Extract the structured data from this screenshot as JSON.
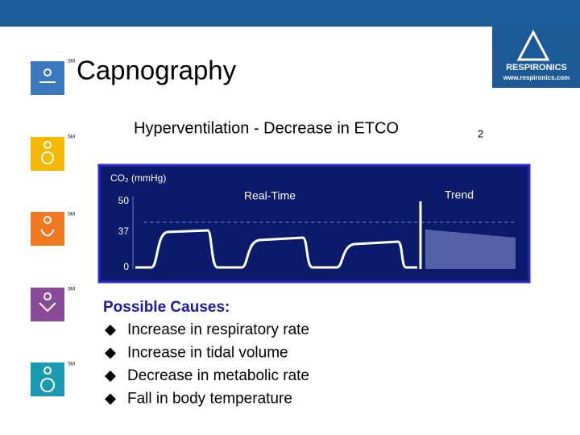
{
  "header": {
    "title": "Capnography",
    "service_mark": "SM"
  },
  "logo": {
    "name": "RESPIRONICS",
    "url": "www.respironics.com"
  },
  "slide": {
    "subtitle": "Hyperventilation - Decrease in ETCO",
    "subtitle_subscript": "2",
    "waveform": {
      "axis_label": "CO₂ (mmHg)",
      "left_label": "Real-Time",
      "right_label": "Trend",
      "ticks": [
        "50",
        "37",
        "0"
      ]
    },
    "causes": {
      "heading": "Possible Causes:",
      "items": [
        "Increase in respiratory rate",
        "Increase in tidal volume",
        "Decrease in metabolic rate",
        "Fall in body temperature"
      ]
    }
  }
}
